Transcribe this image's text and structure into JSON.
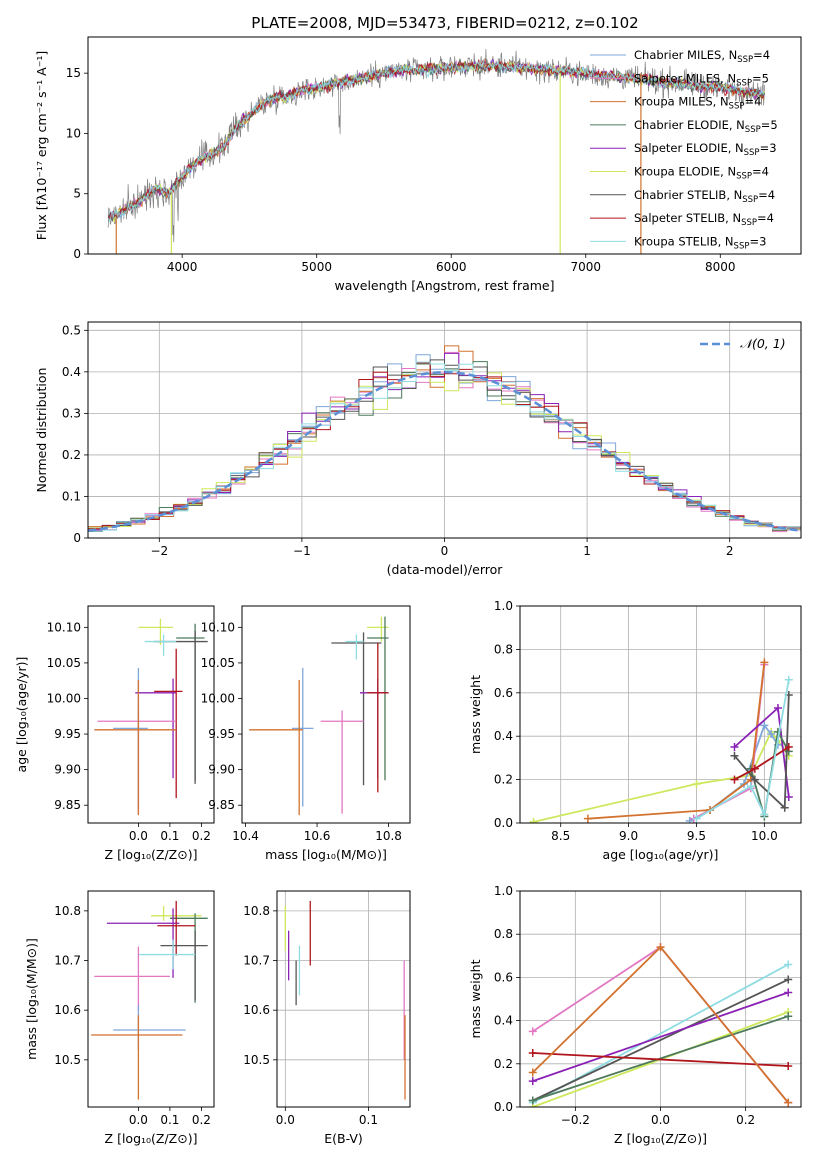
{
  "figure": {
    "title": "PLATE=2008, MJD=53473, FIBERID=0212, z=0.102"
  },
  "colors": {
    "Chabrier MILES": "#7fa7d9",
    "Salpeter MILES": "#e377c2",
    "Kroupa MILES": "#d2722e",
    "Chabrier ELODIE": "#4c7a5a",
    "Salpeter ELODIE": "#8b22b6",
    "Kroupa ELODIE": "#cde85c",
    "Chabrier STELIB": "#555555",
    "Salpeter STELIB": "#b0141c",
    "Kroupa STELIB": "#8fdce3",
    "data": "#808080",
    "normal": "#5b8fd6",
    "magenta": "#cc0066"
  },
  "chart_data": [
    {
      "id": "spectrum",
      "type": "line",
      "xlabel": "wavelength [Angstrom, rest frame]",
      "ylabel": "Flux [fλ10⁻¹⁷ erg cm⁻² s⁻¹ A⁻¹]",
      "xlim": [
        3300,
        8600
      ],
      "ylim": [
        0,
        18
      ],
      "xticks": [
        4000,
        5000,
        6000,
        7000,
        8000
      ],
      "yticks": [
        0,
        5,
        10,
        15
      ],
      "spectrum_shape": {
        "x": [
          3450,
          3550,
          3700,
          3800,
          3900,
          4000,
          4100,
          4200,
          4300,
          4400,
          4500,
          4600,
          4700,
          4800,
          4900,
          5000,
          5200,
          5400,
          5600,
          5800,
          6000,
          6200,
          6400,
          6600,
          6800,
          7000,
          7200,
          7400,
          7600,
          7800,
          8000,
          8200,
          8330
        ],
        "y": [
          3.0,
          3.5,
          4.5,
          5.5,
          5.0,
          6.5,
          7.5,
          8.2,
          8.8,
          10.5,
          11.5,
          12.5,
          13.0,
          13.2,
          13.6,
          13.8,
          14.3,
          14.8,
          15.2,
          15.3,
          15.5,
          15.6,
          15.6,
          15.4,
          15.2,
          15.0,
          14.7,
          14.5,
          14.2,
          14.0,
          13.8,
          13.5,
          13.2
        ]
      },
      "legend": [
        {
          "name": "Chabrier MILES",
          "nssp": "4"
        },
        {
          "name": "Salpeter MILES",
          "nssp": "5"
        },
        {
          "name": "Kroupa MILES",
          "nssp": "4"
        },
        {
          "name": "Chabrier ELODIE",
          "nssp": "5"
        },
        {
          "name": "Salpeter ELODIE",
          "nssp": "3"
        },
        {
          "name": "Kroupa ELODIE",
          "nssp": "4"
        },
        {
          "name": "Chabrier STELIB",
          "nssp": "4"
        },
        {
          "name": "Salpeter STELIB",
          "nssp": "4"
        },
        {
          "name": "Kroupa STELIB",
          "nssp": "3"
        }
      ],
      "legend_placement": "right"
    },
    {
      "id": "residuals",
      "type": "bar",
      "xlabel": "(data-model)/error",
      "ylabel": "Normed distribution",
      "xlim": [
        -2.5,
        2.5
      ],
      "ylim": [
        0,
        0.52
      ],
      "xticks": [
        -2,
        -1,
        0,
        1,
        2
      ],
      "yticks": [
        0.0,
        0.1,
        0.2,
        0.3,
        0.4,
        0.5
      ],
      "bin_width": 0.1,
      "grid": true,
      "legend": "𝒩(0, 1)",
      "legend_placement": "top-right"
    },
    {
      "id": "age-vs-Z",
      "type": "scatter",
      "xlabel": "Z [log₁₀(Z/Z⊙)]",
      "ylabel": "age  [log₁₀(age/yr)]",
      "xlim": [
        -0.16,
        0.24
      ],
      "ylim": [
        9.825,
        10.13
      ],
      "xticks": [
        0.0,
        0.1,
        0.2
      ],
      "xticklabels": [
        "0.0",
        "0.1",
        "0.2"
      ],
      "yticks": [
        9.85,
        9.9,
        9.95,
        10.0,
        10.05,
        10.1
      ],
      "yticklabels": [
        "9.85",
        "9.90",
        "9.95",
        "10.00",
        "10.05",
        "10.10"
      ],
      "points": [
        {
          "series": "Kroupa ELODIE",
          "x": 0.07,
          "xerr": [
            0.07,
            0.04
          ],
          "y": 10.1,
          "yerr": [
            0.025,
            0.012
          ]
        },
        {
          "series": "Chabrier ELODIE",
          "x": 0.18,
          "xerr": [
            0.06,
            0.03
          ],
          "y": 10.085,
          "yerr": [
            0.2,
            0.02
          ]
        },
        {
          "series": "Chabrier STELIB",
          "x": 0.18,
          "xerr": [
            0.13,
            0.04
          ],
          "y": 10.08,
          "yerr": [
            0.2,
            0.015
          ]
        },
        {
          "series": "Kroupa STELIB",
          "x": 0.08,
          "xerr": [
            0.06,
            0.04
          ],
          "y": 10.08,
          "yerr": [
            0.02,
            0.01
          ]
        },
        {
          "series": "Salpeter ELODIE",
          "x": 0.11,
          "xerr": [
            0.12,
            0.01
          ],
          "y": 10.008,
          "yerr": [
            0.12,
            0.02
          ]
        },
        {
          "series": "Salpeter STELIB",
          "x": 0.12,
          "xerr": [
            0.07,
            0.02
          ],
          "y": 10.01,
          "yerr": [
            0.15,
            0.06
          ]
        },
        {
          "series": "Salpeter MILES",
          "x": 0.0,
          "xerr": [
            0.13,
            0.12
          ],
          "y": 9.968,
          "yerr": [
            0.13,
            0.015
          ]
        },
        {
          "series": "Chabrier MILES",
          "x": 0.0,
          "xerr": [
            0.08,
            0.03
          ],
          "y": 9.958,
          "yerr": [
            0.11,
            0.085
          ]
        },
        {
          "series": "Kroupa MILES",
          "x": 0.0,
          "xerr": [
            0.14,
            0.12
          ],
          "y": 9.956,
          "yerr": [
            0.12,
            0.07
          ]
        }
      ]
    },
    {
      "id": "age-vs-mass",
      "type": "scatter",
      "xlabel": "mass [log₁₀(M/M⊙)]",
      "xlim": [
        10.39,
        10.86
      ],
      "ylim": [
        9.825,
        10.13
      ],
      "xticks": [
        10.4,
        10.6,
        10.8
      ],
      "xticklabels": [
        "10.4",
        "10.6",
        "10.8"
      ],
      "yticks": [
        9.85,
        9.9,
        9.95,
        10.0,
        10.05,
        10.1
      ],
      "yticklabels": [
        "9.85",
        "9.90",
        "9.95",
        "10.00",
        "10.05",
        "10.10"
      ],
      "points": [
        {
          "series": "Kroupa ELODIE",
          "x": 10.78,
          "xerr": [
            0.04,
            0.02
          ],
          "y": 10.1,
          "yerr": [
            0.02,
            0.015
          ]
        },
        {
          "series": "Chabrier ELODIE",
          "x": 10.79,
          "xerr": [
            0.05,
            0.01
          ],
          "y": 10.085,
          "yerr": [
            0.2,
            0.03
          ]
        },
        {
          "series": "Chabrier STELIB",
          "x": 10.73,
          "xerr": [
            0.09,
            0.05
          ],
          "y": 10.078,
          "yerr": [
            0.2,
            0.015
          ]
        },
        {
          "series": "Kroupa STELIB",
          "x": 10.71,
          "xerr": [
            0.03,
            0.02
          ],
          "y": 10.08,
          "yerr": [
            0.025,
            0.01
          ]
        },
        {
          "series": "Salpeter ELODIE",
          "x": 10.77,
          "xerr": [
            0.05,
            0.03
          ],
          "y": 10.008,
          "yerr": [
            0.12,
            0.02
          ]
        },
        {
          "series": "Salpeter STELIB",
          "x": 10.77,
          "xerr": [
            0.03,
            0.03
          ],
          "y": 10.008,
          "yerr": [
            0.14,
            0.07
          ]
        },
        {
          "series": "Salpeter MILES",
          "x": 10.67,
          "xerr": [
            0.06,
            0.06
          ],
          "y": 9.968,
          "yerr": [
            0.13,
            0.015
          ]
        },
        {
          "series": "Chabrier MILES",
          "x": 10.56,
          "xerr": [
            0.03,
            0.03
          ],
          "y": 9.958,
          "yerr": [
            0.11,
            0.085
          ]
        },
        {
          "series": "Kroupa MILES",
          "x": 10.55,
          "xerr": [
            0.14,
            0.01
          ],
          "y": 9.956,
          "yerr": [
            0.12,
            0.07
          ]
        }
      ]
    },
    {
      "id": "mass-weight-vs-age",
      "type": "line",
      "xlabel": "age  [log₁₀(age/yr)]",
      "ylabel": "mass weight",
      "xlim": [
        8.2,
        10.27
      ],
      "ylim": [
        0,
        1
      ],
      "xticks": [
        8.5,
        9.0,
        9.5,
        10.0
      ],
      "xticklabels": [
        "8.5",
        "9.0",
        "9.5",
        "10.0"
      ],
      "yticks": [
        0.0,
        0.2,
        0.4,
        0.6,
        0.8,
        1.0
      ],
      "yticklabels": [
        "0.0",
        "0.2",
        "0.4",
        "0.6",
        "0.8",
        "1.0"
      ],
      "grid": true,
      "series": [
        {
          "name": "Kroupa ELODIE",
          "x": [
            8.3,
            9.5,
            9.9,
            10.05,
            10.1,
            10.18
          ],
          "y": [
            0.005,
            0.18,
            0.22,
            0.42,
            0.38,
            0.31
          ]
        },
        {
          "name": "Chabrier MILES",
          "x": [
            9.45,
            9.6,
            9.85,
            10.0,
            10.05,
            10.1
          ],
          "y": [
            0.01,
            0.06,
            0.18,
            0.45,
            0.41,
            0.36
          ]
        },
        {
          "name": "Salpeter MILES",
          "x": [
            9.48,
            9.9,
            10.0
          ],
          "y": [
            0.02,
            0.16,
            0.73
          ]
        },
        {
          "name": "Kroupa MILES",
          "x": [
            8.7,
            9.6,
            9.9,
            10.0
          ],
          "y": [
            0.02,
            0.06,
            0.2,
            0.74
          ]
        },
        {
          "name": "Salpeter ELODIE",
          "x": [
            9.78,
            10.1,
            10.18
          ],
          "y": [
            0.35,
            0.53,
            0.12
          ]
        },
        {
          "name": "Chabrier ELODIE",
          "x": [
            9.9,
            10.0,
            10.1,
            10.18
          ],
          "y": [
            0.25,
            0.03,
            0.42,
            0.33
          ]
        },
        {
          "name": "Chabrier STELIB",
          "x": [
            9.78,
            9.93,
            10.15,
            10.18
          ],
          "y": [
            0.31,
            0.2,
            0.07,
            0.59
          ]
        },
        {
          "name": "Salpeter STELIB",
          "x": [
            9.78,
            9.93,
            10.18
          ],
          "y": [
            0.2,
            0.25,
            0.35
          ]
        },
        {
          "name": "Kroupa STELIB",
          "x": [
            9.5,
            9.9,
            10.0,
            10.18
          ],
          "y": [
            0.02,
            0.17,
            0.04,
            0.66
          ]
        }
      ]
    },
    {
      "id": "mass-vs-Z",
      "type": "scatter",
      "xlabel": "Z [log₁₀(Z/Z⊙)]",
      "ylabel": "mass [log₁₀(M/M⊙)]",
      "xlim": [
        -0.16,
        0.24
      ],
      "ylim": [
        10.405,
        10.84
      ],
      "xticks": [
        0.0,
        0.1,
        0.2
      ],
      "xticklabels": [
        "0.0",
        "0.1",
        "0.2"
      ],
      "yticks": [
        10.5,
        10.6,
        10.7,
        10.8
      ],
      "yticklabels": [
        "10.5",
        "10.6",
        "10.7",
        "10.8"
      ],
      "points": [
        {
          "series": "Kroupa ELODIE",
          "x": 0.08,
          "xerr": [
            0.04,
            0.12
          ],
          "y": 10.79,
          "yerr": [
            0.01,
            0.02
          ]
        },
        {
          "series": "Chabrier ELODIE",
          "x": 0.18,
          "xerr": [
            0.08,
            0.04
          ],
          "y": 10.785,
          "yerr": [
            0.17,
            0.01
          ]
        },
        {
          "series": "Salpeter ELODIE",
          "x": 0.11,
          "xerr": [
            0.21,
            0.02
          ],
          "y": 10.775,
          "yerr": [
            0.11,
            0.03
          ]
        },
        {
          "series": "Salpeter STELIB",
          "x": 0.12,
          "xerr": [
            0.06,
            0.06
          ],
          "y": 10.77,
          "yerr": [
            0.06,
            0.05
          ]
        },
        {
          "series": "Chabrier STELIB",
          "x": 0.18,
          "xerr": [
            0.11,
            0.04
          ],
          "y": 10.73,
          "yerr": [
            0.11,
            0.03
          ]
        },
        {
          "series": "Kroupa STELIB",
          "x": 0.11,
          "xerr": [
            0.11,
            0.07
          ],
          "y": 10.712,
          "yerr": [
            0.03,
            0.03
          ]
        },
        {
          "series": "Salpeter MILES",
          "x": 0.0,
          "xerr": [
            0.14,
            0.1
          ],
          "y": 10.668,
          "yerr": [
            0.07,
            0.06
          ]
        },
        {
          "series": "Chabrier MILES",
          "x": 0.0,
          "xerr": [
            0.08,
            0.15
          ],
          "y": 10.56,
          "yerr": [
            0.04,
            0.05
          ]
        },
        {
          "series": "Kroupa MILES",
          "x": 0.0,
          "xerr": [
            0.15,
            0.14
          ],
          "y": 10.55,
          "yerr": [
            0.13,
            0.04
          ]
        }
      ]
    },
    {
      "id": "mass-vs-EBV",
      "type": "scatter",
      "xlabel": "E(B-V)",
      "xlim": [
        -0.01,
        0.15
      ],
      "ylim": [
        10.405,
        10.84
      ],
      "xticks": [
        0.0,
        0.1
      ],
      "xticklabels": [
        "0.0",
        "0.1"
      ],
      "yticks": [
        10.5,
        10.6,
        10.7,
        10.8
      ],
      "yticklabels": [
        "10.5",
        "10.6",
        "10.7",
        "10.8"
      ],
      "grid": true,
      "points": [
        {
          "series": "Kroupa ELODIE",
          "x": 0.0,
          "y": 10.77,
          "yerr": [
            0.05,
            0.04
          ]
        },
        {
          "series": "Salpeter ELODIE",
          "x": 0.004,
          "y": 10.71,
          "yerr": [
            0.05,
            0.05
          ]
        },
        {
          "series": "Kroupa STELIB",
          "x": 0.017,
          "y": 10.68,
          "yerr": [
            0.05,
            0.05
          ]
        },
        {
          "series": "Chabrier STELIB",
          "x": 0.013,
          "y": 10.66,
          "yerr": [
            0.05,
            0.04
          ]
        },
        {
          "series": "Salpeter STELIB",
          "x": 0.03,
          "y": 10.75,
          "yerr": [
            0.06,
            0.07
          ]
        },
        {
          "series": "Salpeter MILES",
          "x": 0.143,
          "y": 10.6,
          "yerr": [
            0.1,
            0.1
          ]
        },
        {
          "series": "Kroupa MILES",
          "x": 0.144,
          "y": 10.5,
          "yerr": [
            0.08,
            0.09
          ]
        }
      ]
    },
    {
      "id": "mass-weight-vs-Z",
      "type": "line",
      "xlabel": "Z [log₁₀(Z/Z⊙)]",
      "ylabel": "mass weight",
      "xlim": [
        -0.33,
        0.33
      ],
      "ylim": [
        0,
        1
      ],
      "xticks": [
        -0.2,
        0.0,
        0.2
      ],
      "xticklabels": [
        "−0.2",
        "0.0",
        "0.2"
      ],
      "yticks": [
        0.0,
        0.2,
        0.4,
        0.6,
        0.8,
        1.0
      ],
      "yticklabels": [
        "0.0",
        "0.2",
        "0.4",
        "0.6",
        "0.8",
        "1.0"
      ],
      "grid": true,
      "series": [
        {
          "name": "Kroupa STELIB",
          "x": [
            -0.3,
            0.3
          ],
          "y": [
            0.02,
            0.66
          ]
        },
        {
          "name": "Chabrier STELIB",
          "x": [
            -0.3,
            0.3
          ],
          "y": [
            0.03,
            0.59
          ]
        },
        {
          "name": "Salpeter ELODIE",
          "x": [
            -0.3,
            0.3
          ],
          "y": [
            0.12,
            0.53
          ]
        },
        {
          "name": "Kroupa ELODIE",
          "x": [
            -0.3,
            0.3
          ],
          "y": [
            0.0,
            0.44
          ]
        },
        {
          "name": "Chabrier ELODIE",
          "x": [
            -0.3,
            0.3
          ],
          "y": [
            0.03,
            0.42
          ]
        },
        {
          "name": "Salpeter STELIB",
          "x": [
            -0.3,
            0.3
          ],
          "y": [
            0.25,
            0.19
          ]
        },
        {
          "name": "Salpeter MILES",
          "x": [
            -0.3,
            0.0,
            0.3
          ],
          "y": [
            0.35,
            0.74,
            0.02
          ]
        },
        {
          "name": "Kroupa MILES",
          "x": [
            -0.3,
            0.0,
            0.3
          ],
          "y": [
            0.16,
            0.74,
            0.02
          ]
        }
      ]
    }
  ]
}
